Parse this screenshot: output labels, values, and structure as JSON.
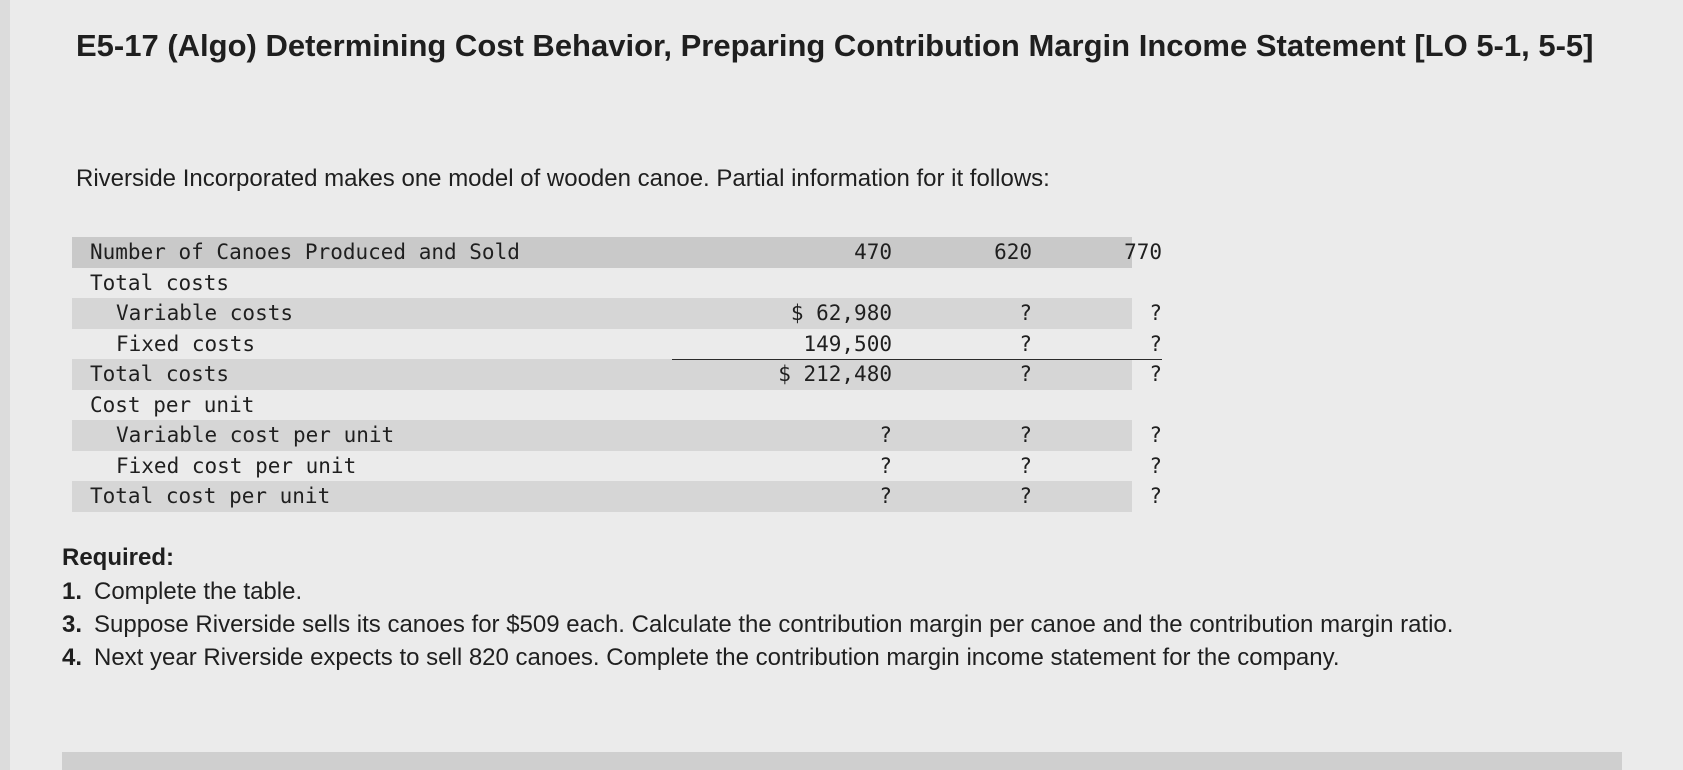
{
  "title": "E5-17 (Algo) Determining Cost Behavior, Preparing Contribution Margin Income Statement [LO 5-1, 5-5]",
  "intro": "Riverside Incorporated makes one model of wooden canoe. Partial information for it follows:",
  "table": {
    "header": {
      "label": "Number of Canoes Produced and Sold",
      "cols": [
        "470",
        "620",
        "770"
      ]
    },
    "rows": [
      {
        "label": "Total costs",
        "cols": [
          "",
          "",
          ""
        ]
      },
      {
        "label": "Variable costs",
        "cols": [
          "$ 62,980",
          "?",
          "?"
        ]
      },
      {
        "label": "Fixed costs",
        "cols": [
          "149,500",
          "?",
          "?"
        ]
      },
      {
        "label": "Total costs",
        "cols": [
          "$ 212,480",
          "?",
          "?"
        ]
      },
      {
        "label": "Cost per unit",
        "cols": [
          "",
          "",
          ""
        ]
      },
      {
        "label": "Variable cost per unit",
        "cols": [
          "?",
          "?",
          "?"
        ]
      },
      {
        "label": "Fixed cost per unit",
        "cols": [
          "?",
          "?",
          "?"
        ]
      },
      {
        "label": "Total cost per unit",
        "cols": [
          "?",
          "?",
          "?"
        ]
      }
    ]
  },
  "required": {
    "heading": "Required:",
    "items": [
      {
        "num": "1.",
        "text": "Complete the table."
      },
      {
        "num": "3.",
        "text": "Suppose Riverside sells its canoes for $509 each. Calculate the contribution margin per canoe and the contribution margin ratio."
      },
      {
        "num": "4.",
        "text": "Next year Riverside expects to sell 820 canoes. Complete the contribution margin income statement for the company."
      }
    ]
  }
}
